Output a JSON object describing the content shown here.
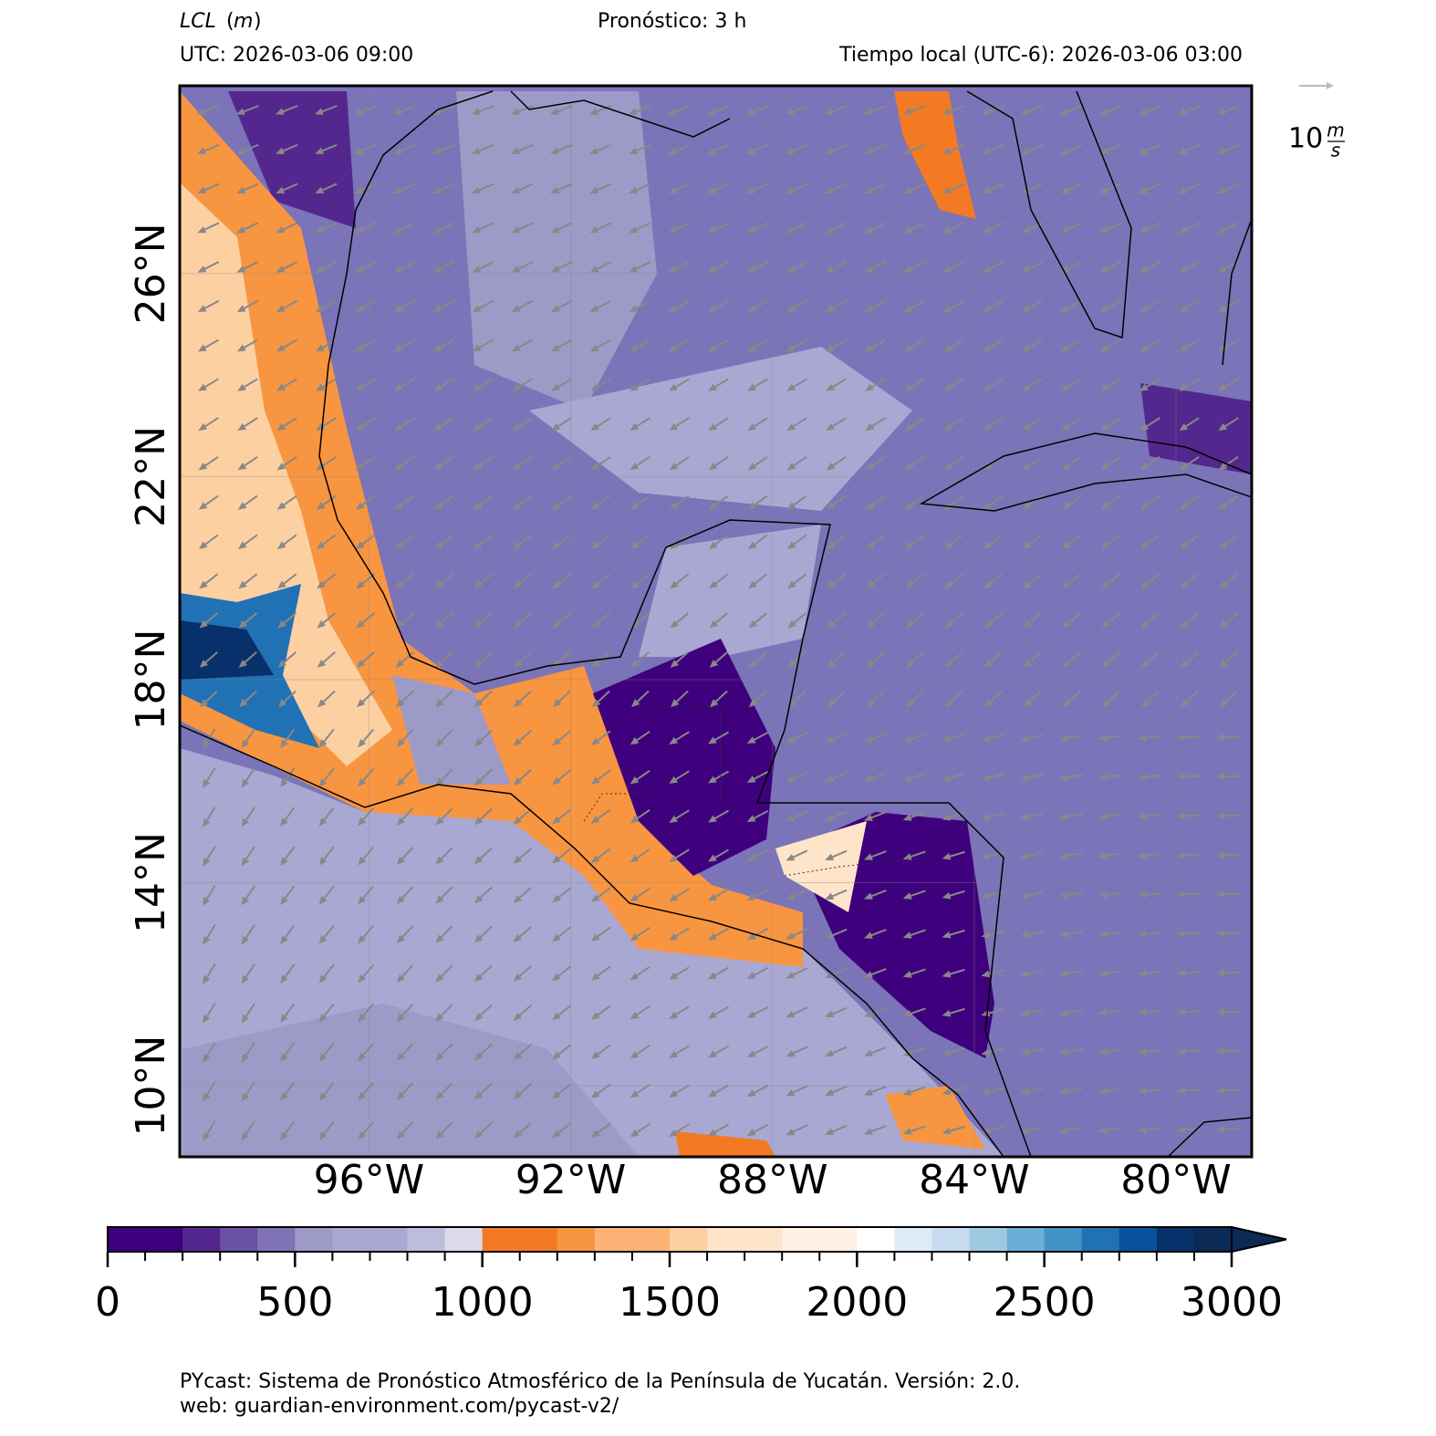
{
  "chart_data": {
    "type": "map",
    "title": "LCL",
    "title_unit": "m",
    "forecast": "Pronóstico: 3 h",
    "utc": "UTC:  2026-03-06 09:00",
    "local_time": "Tiempo local (UTC-6): 2026-03-06 03:00",
    "xlim": [
      -99.75,
      -78.5
    ],
    "ylim": [
      8.6,
      29.7
    ],
    "xticks": [
      {
        "value": -96,
        "label": "96°W"
      },
      {
        "value": -92,
        "label": "92°W"
      },
      {
        "value": -88,
        "label": "88°W"
      },
      {
        "value": -84,
        "label": "84°W"
      },
      {
        "value": -80,
        "label": "80°W"
      }
    ],
    "yticks": [
      {
        "value": 10,
        "label": "10°N"
      },
      {
        "value": 14,
        "label": "14°N"
      },
      {
        "value": 18,
        "label": "18°N"
      },
      {
        "value": 22,
        "label": "22°N"
      },
      {
        "value": 26,
        "label": "26°N"
      }
    ],
    "wind_key": {
      "label": "10",
      "unit_num": "m",
      "unit_den": "s"
    },
    "colorbar": {
      "lim": [
        0,
        3000
      ],
      "ticks": [
        0,
        500,
        1000,
        1500,
        2000,
        2500,
        3000
      ],
      "colors": [
        "#3f007d",
        "#3f007d",
        "#54278f",
        "#6a51a3",
        "#7f73b5",
        "#9e9ac8",
        "#a9a8d2",
        "#a9a8d2",
        "#bcbddc",
        "#dadaeb",
        "#f37a22",
        "#f37a22",
        "#f89540",
        "#fbb475",
        "#fbb475",
        "#fdd0a2",
        "#fee4c8",
        "#fee4c8",
        "#fff1e3",
        "#fff1e3",
        "#ffffff",
        "#deebf7",
        "#c6dbef",
        "#9ecae1",
        "#6baed6",
        "#4292c6",
        "#2171b5",
        "#08519c",
        "#08306b",
        "#0b2a55"
      ]
    },
    "footer": [
      "PYcast: Sistema de Pronóstico Atmosférico de la Península de Yucatán. Versión: 2.0.",
      "web: guardian-environment.com/pycast-v2/"
    ]
  }
}
